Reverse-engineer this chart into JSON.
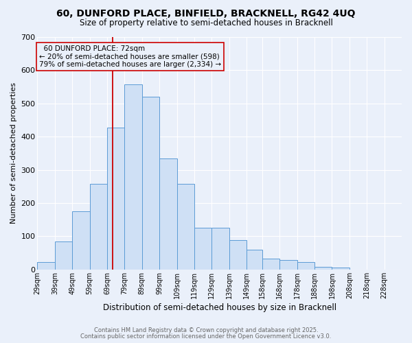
{
  "title": "60, DUNFORD PLACE, BINFIELD, BRACKNELL, RG42 4UQ",
  "subtitle": "Size of property relative to semi-detached houses in Bracknell",
  "xlabel": "Distribution of semi-detached houses by size in Bracknell",
  "ylabel": "Number of semi-detached properties",
  "bar_color": "#cfe0f5",
  "bar_edge_color": "#5b9bd5",
  "background_color": "#eaf0fa",
  "grid_color": "#ffffff",
  "bin_labels": [
    "29sqm",
    "39sqm",
    "49sqm",
    "59sqm",
    "69sqm",
    "79sqm",
    "89sqm",
    "99sqm",
    "109sqm",
    "119sqm",
    "129sqm",
    "139sqm",
    "149sqm",
    "158sqm",
    "168sqm",
    "178sqm",
    "188sqm",
    "198sqm",
    "208sqm",
    "218sqm",
    "228sqm"
  ],
  "bar_values": [
    22,
    85,
    175,
    258,
    428,
    558,
    520,
    335,
    258,
    125,
    125,
    88,
    60,
    33,
    28,
    22,
    8,
    6,
    0,
    0,
    0
  ],
  "ylim": [
    0,
    700
  ],
  "yticks": [
    0,
    100,
    200,
    300,
    400,
    500,
    600,
    700
  ],
  "vline_color": "#cc0000",
  "annotation_title": "60 DUNFORD PLACE: 72sqm",
  "annotation_line1": "← 20% of semi-detached houses are smaller (598)",
  "annotation_line2": "79% of semi-detached houses are larger (2,334) →",
  "annotation_box_edge": "#cc0000",
  "footnote1": "Contains HM Land Registry data © Crown copyright and database right 2025.",
  "footnote2": "Contains public sector information licensed under the Open Government Licence v3.0.",
  "bin_edges": [
    29,
    39,
    49,
    59,
    69,
    79,
    89,
    99,
    109,
    119,
    129,
    139,
    149,
    158,
    168,
    178,
    188,
    198,
    208,
    218,
    228,
    238
  ]
}
